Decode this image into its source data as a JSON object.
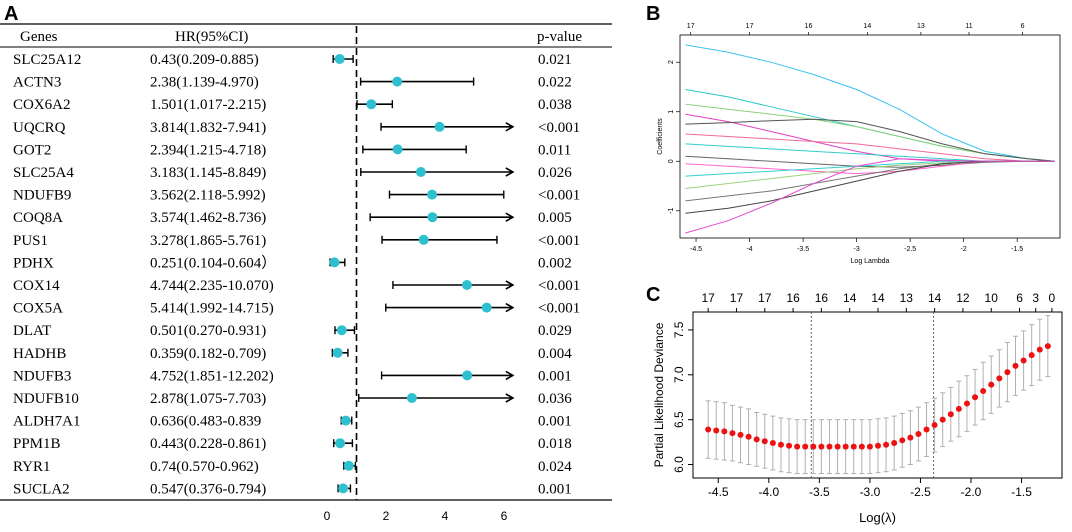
{
  "panels": {
    "a": "A",
    "b": "B",
    "c": "C"
  },
  "chart_data": [
    {
      "type": "forest",
      "headers": {
        "genes": "Genes",
        "hr": "HR(95%CI)",
        "p": "p-value"
      },
      "x_ticks": [
        0,
        2,
        4,
        6
      ],
      "reference_line": 1,
      "colors": {
        "point": "#2fc0d0",
        "line": "#000000"
      },
      "rows": [
        {
          "gene": "SLC25A12",
          "hr_text": "0.43(0.209-0.885)",
          "p": "0.021",
          "hr": 0.43,
          "lo": 0.209,
          "hi": 0.885
        },
        {
          "gene": "ACTN3",
          "hr_text": "2.38(1.139-4.970)",
          "p": "0.022",
          "hr": 2.38,
          "lo": 1.139,
          "hi": 4.97
        },
        {
          "gene": "COX6A2",
          "hr_text": "1.501(1.017-2.215)",
          "p": "0.038",
          "hr": 1.501,
          "lo": 1.017,
          "hi": 2.215
        },
        {
          "gene": "UQCRQ",
          "hr_text": "3.814(1.832-7.941)",
          "p": "<0.001",
          "hr": 3.814,
          "lo": 1.832,
          "hi": 7.941
        },
        {
          "gene": "GOT2",
          "hr_text": "2.394(1.215-4.718)",
          "p": "0.011",
          "hr": 2.394,
          "lo": 1.215,
          "hi": 4.718
        },
        {
          "gene": "SLC25A4",
          "hr_text": "3.183(1.145-8.849)",
          "p": "0.026",
          "hr": 3.183,
          "lo": 1.145,
          "hi": 8.849
        },
        {
          "gene": "NDUFB9",
          "hr_text": "3.562(2.118-5.992)",
          "p": "<0.001",
          "hr": 3.562,
          "lo": 2.118,
          "hi": 5.992
        },
        {
          "gene": "COQ8A",
          "hr_text": "3.574(1.462-8.736)",
          "p": "0.005",
          "hr": 3.574,
          "lo": 1.462,
          "hi": 8.736
        },
        {
          "gene": "PUS1",
          "hr_text": "3.278(1.865-5.761)",
          "p": "<0.001",
          "hr": 3.278,
          "lo": 1.865,
          "hi": 5.761
        },
        {
          "gene": "PDHX",
          "hr_text": "0.251(0.104-0.604）",
          "p": "0.002",
          "hr": 0.251,
          "lo": 0.104,
          "hi": 0.604
        },
        {
          "gene": "COX14",
          "hr_text": "4.744(2.235-10.070)",
          "p": "<0.001",
          "hr": 4.744,
          "lo": 2.235,
          "hi": 10.07
        },
        {
          "gene": "COX5A",
          "hr_text": "5.414(1.992-14.715)",
          "p": "<0.001",
          "hr": 5.414,
          "lo": 1.992,
          "hi": 14.715
        },
        {
          "gene": "DLAT",
          "hr_text": "0.501(0.270-0.931)",
          "p": "0.029",
          "hr": 0.501,
          "lo": 0.27,
          "hi": 0.931
        },
        {
          "gene": "HADHB",
          "hr_text": "0.359(0.182-0.709)",
          "p": "0.004",
          "hr": 0.359,
          "lo": 0.182,
          "hi": 0.709
        },
        {
          "gene": "NDUFB3",
          "hr_text": "4.752(1.851-12.202)",
          "p": "0.001",
          "hr": 4.752,
          "lo": 1.851,
          "hi": 12.202
        },
        {
          "gene": "NDUFB10",
          "hr_text": "2.878(1.075-7.703)",
          "p": "0.036",
          "hr": 2.878,
          "lo": 1.075,
          "hi": 7.703
        },
        {
          "gene": "ALDH7A1",
          "hr_text": "0.636(0.483-0.839",
          "p": "0.001",
          "hr": 0.636,
          "lo": 0.483,
          "hi": 0.839
        },
        {
          "gene": "PPM1B",
          "hr_text": "0.443(0.228-0.861)",
          "p": "0.018",
          "hr": 0.443,
          "lo": 0.228,
          "hi": 0.861
        },
        {
          "gene": "RYR1",
          "hr_text": "0.74(0.570-0.962)",
          "p": "0.024",
          "hr": 0.74,
          "lo": 0.57,
          "hi": 0.962
        },
        {
          "gene": "SUCLA2",
          "hr_text": "0.547(0.376-0.794)",
          "p": "0.001",
          "hr": 0.547,
          "lo": 0.376,
          "hi": 0.794
        }
      ]
    },
    {
      "type": "line",
      "title": "",
      "xlabel": "Log Lambda",
      "ylabel": "Coefficients",
      "x_ticks": [
        -4.5,
        -4.0,
        -3.5,
        -3.0,
        -2.5,
        -2.0,
        -1.5
      ],
      "y_ticks": [
        -1,
        0,
        1,
        2
      ],
      "top_ticks": [
        "17",
        "17",
        "16",
        "14",
        "13",
        "11",
        "6"
      ],
      "top_tick_x": [
        -4.55,
        -4.0,
        -3.45,
        -2.9,
        -2.4,
        -1.95,
        -1.45
      ],
      "xlim": [
        -4.65,
        -1.1
      ],
      "ylim": [
        -1.55,
        2.55
      ],
      "x": [
        -4.6,
        -4.2,
        -3.8,
        -3.4,
        -3.0,
        -2.6,
        -2.2,
        -1.8,
        -1.4,
        -1.15
      ],
      "series": [
        {
          "name": "s1",
          "color": "#3cc3f0",
          "values": [
            2.35,
            2.2,
            2.0,
            1.75,
            1.45,
            1.05,
            0.55,
            0.2,
            0.05,
            0.0
          ]
        },
        {
          "name": "s2",
          "color": "#2ec9c9",
          "values": [
            1.45,
            1.3,
            1.1,
            0.9,
            0.7,
            0.5,
            0.3,
            0.15,
            0.05,
            0.0
          ]
        },
        {
          "name": "s3",
          "color": "#8bd37a",
          "values": [
            1.15,
            1.05,
            0.95,
            0.85,
            0.7,
            0.5,
            0.3,
            0.15,
            0.05,
            0.0
          ]
        },
        {
          "name": "s4",
          "color": "#e040c0",
          "values": [
            0.95,
            0.8,
            0.6,
            0.4,
            0.2,
            0.05,
            0.0,
            0.0,
            0.0,
            0.0
          ]
        },
        {
          "name": "s5",
          "color": "#555555",
          "values": [
            0.75,
            0.78,
            0.82,
            0.85,
            0.8,
            0.6,
            0.35,
            0.15,
            0.05,
            0.0
          ]
        },
        {
          "name": "s6",
          "color": "#f06a9a",
          "values": [
            0.55,
            0.5,
            0.45,
            0.4,
            0.35,
            0.25,
            0.15,
            0.05,
            0.0,
            0.0
          ]
        },
        {
          "name": "s7",
          "color": "#33cccc",
          "values": [
            0.35,
            0.3,
            0.25,
            0.2,
            0.15,
            0.1,
            0.05,
            0.0,
            0.0,
            0.0
          ]
        },
        {
          "name": "s8",
          "color": "#666666",
          "values": [
            0.1,
            0.05,
            0.0,
            -0.05,
            -0.1,
            -0.12,
            -0.08,
            -0.02,
            0.0,
            0.0
          ]
        },
        {
          "name": "s9",
          "color": "#ff66cc",
          "values": [
            -0.05,
            -0.1,
            -0.15,
            -0.2,
            -0.25,
            -0.2,
            -0.1,
            0.0,
            0.0,
            0.0
          ]
        },
        {
          "name": "s10",
          "color": "#37d0d0",
          "values": [
            -0.3,
            -0.25,
            -0.2,
            -0.15,
            -0.1,
            -0.05,
            0.0,
            0.0,
            0.0,
            0.0
          ]
        },
        {
          "name": "s11",
          "color": "#9ad27e",
          "values": [
            -0.55,
            -0.45,
            -0.35,
            -0.25,
            -0.15,
            -0.08,
            -0.03,
            0.0,
            0.0,
            0.0
          ]
        },
        {
          "name": "s12",
          "color": "#777777",
          "values": [
            -0.8,
            -0.7,
            -0.6,
            -0.45,
            -0.3,
            -0.15,
            -0.05,
            0.0,
            0.0,
            0.0
          ]
        },
        {
          "name": "s13",
          "color": "#444444",
          "values": [
            -1.05,
            -0.95,
            -0.8,
            -0.6,
            -0.4,
            -0.2,
            -0.05,
            0.0,
            0.0,
            0.0
          ]
        },
        {
          "name": "s14",
          "color": "#e34bd0",
          "values": [
            -1.45,
            -1.2,
            -0.85,
            -0.45,
            -0.1,
            0.05,
            0.02,
            0.0,
            0.0,
            0.0
          ]
        }
      ]
    },
    {
      "type": "scatter",
      "xlabel": "Log(λ)",
      "ylabel": "Partial Likelihood Deviance",
      "x_ticks": [
        -4.5,
        -4.0,
        -3.5,
        -3.0,
        -2.5,
        -2.0,
        -1.5
      ],
      "x_tick_labels": [
        "-4.5",
        "-4.0",
        "-3.5",
        "-3.0",
        "-2.5",
        "-2.0",
        "-1.5"
      ],
      "y_ticks": [
        6.0,
        6.5,
        7.0,
        7.5
      ],
      "y_tick_labels": [
        "6.0",
        "6.5",
        "7.0",
        "7.5"
      ],
      "top_ticks": [
        "17",
        "17",
        "17",
        "16",
        "16",
        "14",
        "14",
        "13",
        "14",
        "12",
        "10",
        "6",
        "3",
        "0"
      ],
      "top_tick_x": [
        -4.6,
        -4.32,
        -4.04,
        -3.76,
        -3.48,
        -3.2,
        -2.92,
        -2.64,
        -2.36,
        -2.08,
        -1.8,
        -1.52,
        -1.36,
        -1.2
      ],
      "xlim": [
        -4.75,
        -1.1
      ],
      "ylim": [
        5.85,
        7.7
      ],
      "vlines": [
        -3.58,
        -2.37
      ],
      "colors": {
        "point": "#ee1111",
        "error": "#b0b0b0"
      },
      "x": [
        -4.6,
        -4.52,
        -4.44,
        -4.36,
        -4.28,
        -4.2,
        -4.12,
        -4.04,
        -3.96,
        -3.88,
        -3.8,
        -3.72,
        -3.64,
        -3.56,
        -3.48,
        -3.4,
        -3.32,
        -3.24,
        -3.16,
        -3.08,
        -3.0,
        -2.92,
        -2.84,
        -2.76,
        -2.68,
        -2.6,
        -2.52,
        -2.44,
        -2.36,
        -2.28,
        -2.2,
        -2.12,
        -2.04,
        -1.96,
        -1.88,
        -1.8,
        -1.72,
        -1.64,
        -1.56,
        -1.48,
        -1.4,
        -1.32,
        -1.24
      ],
      "y": [
        6.39,
        6.38,
        6.37,
        6.35,
        6.33,
        6.31,
        6.28,
        6.26,
        6.24,
        6.22,
        6.21,
        6.2,
        6.2,
        6.2,
        6.2,
        6.2,
        6.2,
        6.2,
        6.2,
        6.2,
        6.2,
        6.21,
        6.22,
        6.24,
        6.27,
        6.3,
        6.34,
        6.39,
        6.44,
        6.5,
        6.56,
        6.62,
        6.68,
        6.75,
        6.82,
        6.89,
        6.96,
        7.03,
        7.1,
        7.16,
        7.22,
        7.28,
        7.32
      ],
      "err": [
        0.32,
        0.32,
        0.32,
        0.31,
        0.31,
        0.31,
        0.3,
        0.3,
        0.3,
        0.3,
        0.3,
        0.3,
        0.3,
        0.3,
        0.3,
        0.3,
        0.3,
        0.3,
        0.3,
        0.3,
        0.3,
        0.3,
        0.3,
        0.3,
        0.3,
        0.3,
        0.3,
        0.3,
        0.3,
        0.3,
        0.3,
        0.31,
        0.31,
        0.31,
        0.32,
        0.32,
        0.32,
        0.33,
        0.33,
        0.33,
        0.34,
        0.34,
        0.34
      ]
    }
  ]
}
